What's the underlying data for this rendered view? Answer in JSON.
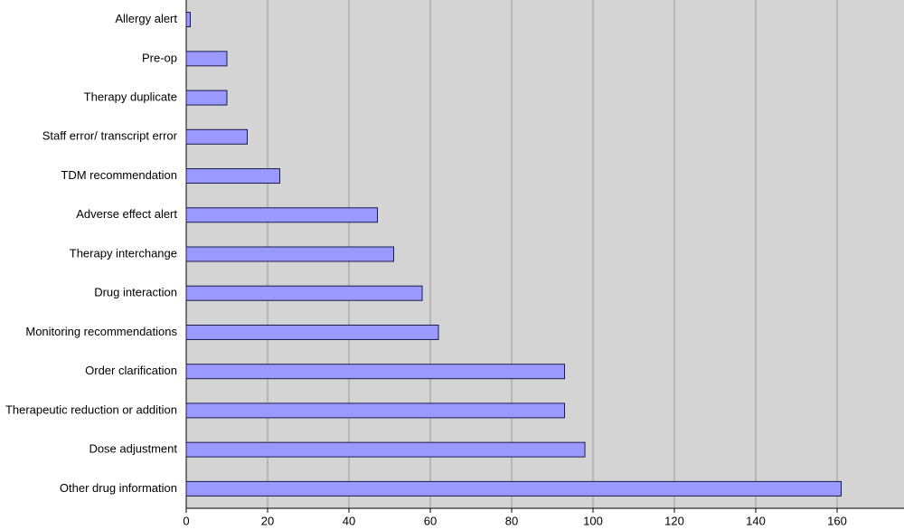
{
  "chart_data": {
    "type": "hbar",
    "categories": [
      "Allergy alert",
      "Pre-op",
      "Therapy duplicate",
      "Staff error/ transcript error",
      "TDM recommendation",
      "Adverse effect alert",
      "Therapy interchange",
      "Drug interaction",
      "Monitoring recommendations",
      "Order clarification",
      "Therapeutic reduction or addition",
      "Dose adjustment",
      "Other drug information"
    ],
    "values": [
      1,
      10,
      10,
      15,
      23,
      47,
      51,
      58,
      62,
      93,
      93,
      98,
      161
    ],
    "color": "#9999ff",
    "xlim": [
      0,
      176
    ],
    "xticks": [
      0,
      20,
      40,
      60,
      80,
      100,
      120,
      140,
      160
    ],
    "grid": true
  }
}
